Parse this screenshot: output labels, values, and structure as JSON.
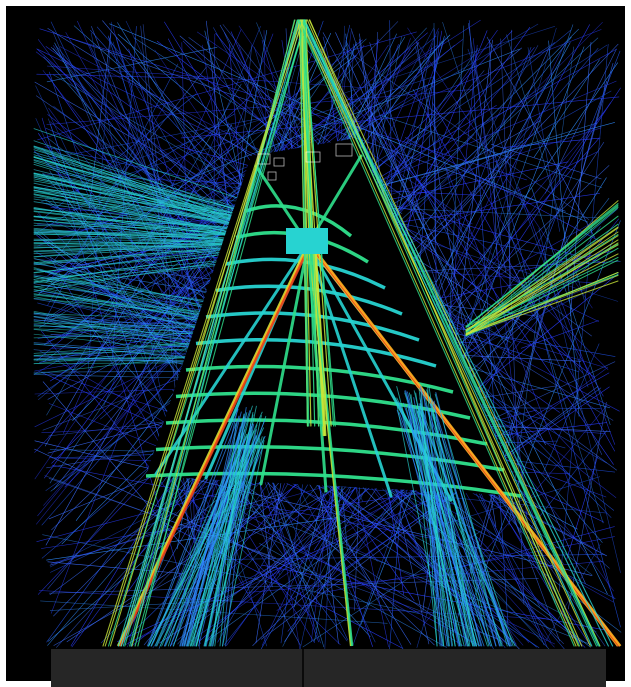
{
  "visualization": {
    "type": "axial-line-connectivity-map",
    "background_color": "#000000",
    "color_scale": [
      "#2a3cff",
      "#2f8cff",
      "#27d3d1",
      "#2fe08c",
      "#c8e63a",
      "#ffb020",
      "#e8401a"
    ],
    "block_color": "#000000",
    "street_net_color": "#ffffff"
  },
  "footer_bar": {
    "color": "#262626"
  }
}
